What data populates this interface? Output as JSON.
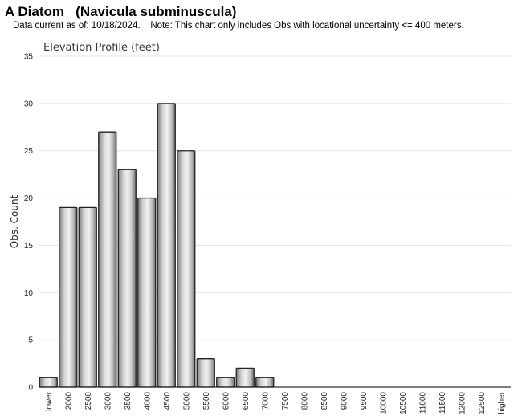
{
  "header": {
    "title": "A Diatom   (Navicula subminuscula)",
    "note": "Data current as of: 10/18/2024.    Note: This chart only includes Obs with locational uncertainty <= 400 meters."
  },
  "chart_data": {
    "type": "bar",
    "title": "Elevation Profile (feet)",
    "xlabel": "",
    "ylabel": "Obs. Count",
    "ylim": [
      0,
      35
    ],
    "yticks": [
      0,
      5,
      10,
      15,
      20,
      25,
      30,
      35
    ],
    "grid": true,
    "legend": "none",
    "categories": [
      "lower",
      "2000",
      "2500",
      "3000",
      "3500",
      "4000",
      "4500",
      "5000",
      "5500",
      "6000",
      "6500",
      "7000",
      "7500",
      "8000",
      "8500",
      "9000",
      "9500",
      "10000",
      "10500",
      "11000",
      "11500",
      "12000",
      "12500",
      "higher"
    ],
    "values": [
      1,
      19,
      19,
      27,
      23,
      20,
      30,
      25,
      3,
      1,
      2,
      1,
      0,
      0,
      0,
      0,
      0,
      0,
      0,
      0,
      0,
      0,
      0,
      0
    ],
    "bar_color": "#b8b8b8",
    "bar_edge_color": "#222222",
    "grid_color": "#e3e3e3"
  }
}
